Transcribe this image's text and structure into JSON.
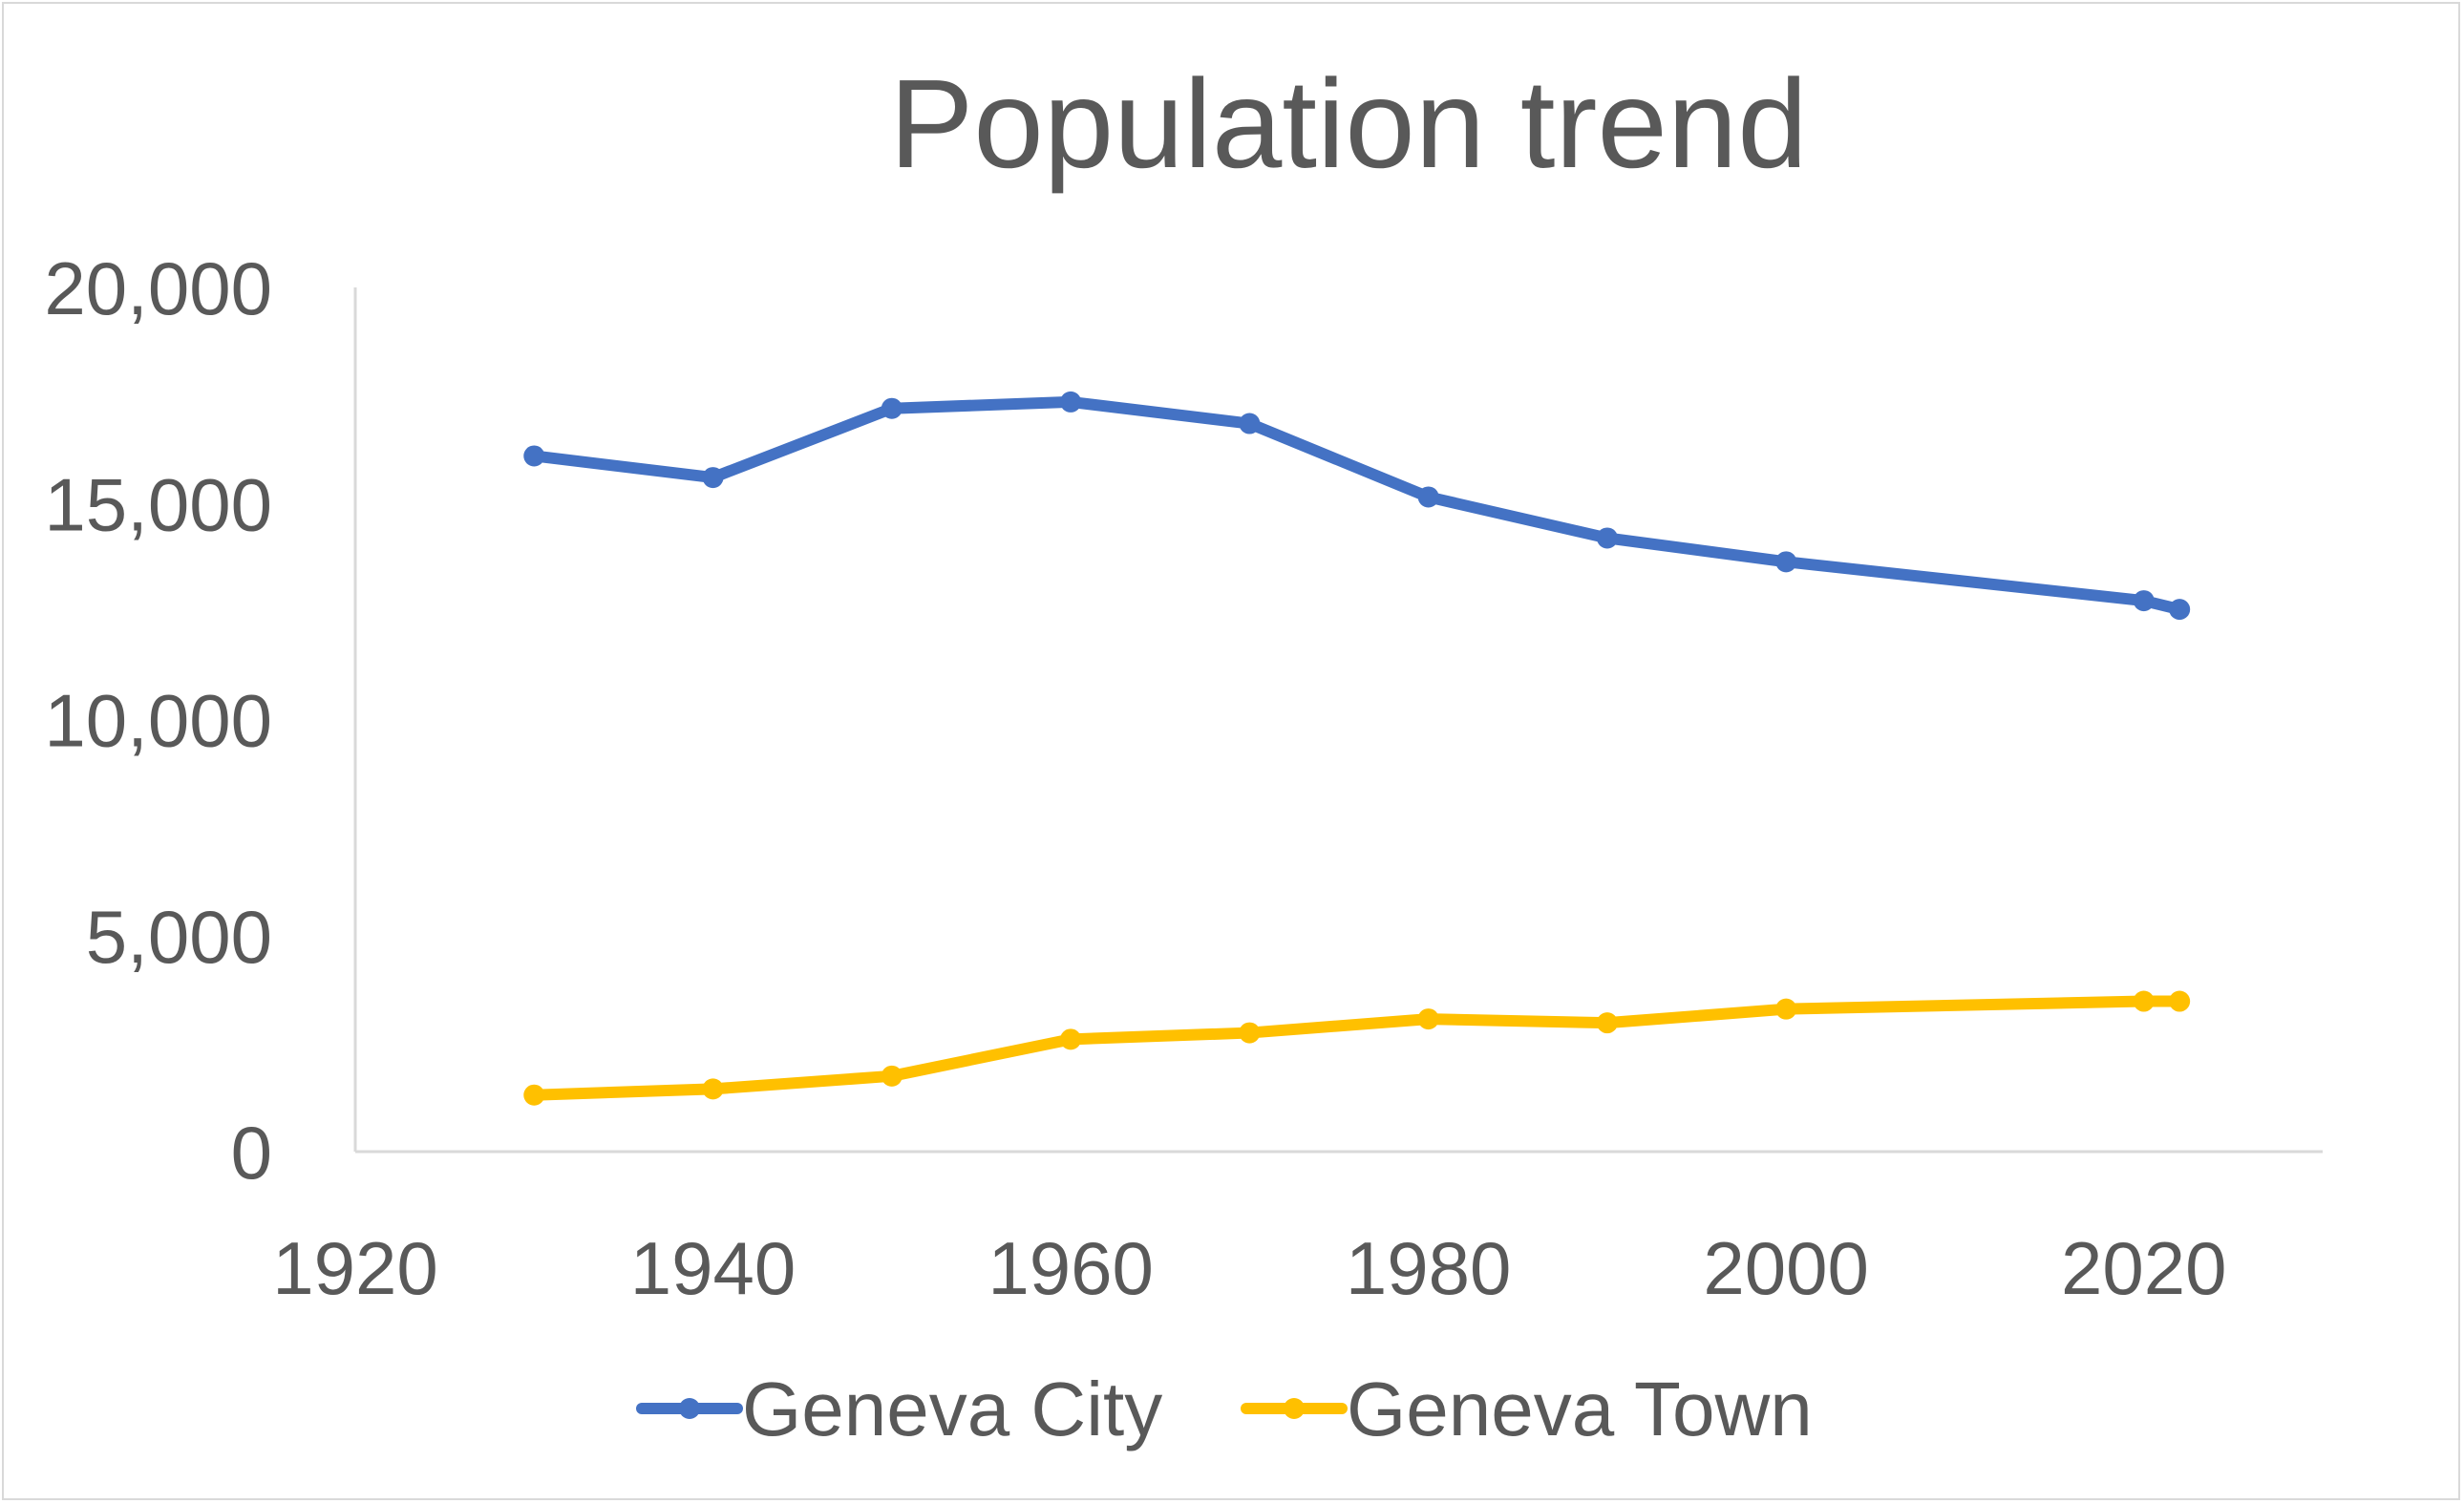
{
  "chart_data": {
    "type": "line",
    "title": "Population trend",
    "xlabel": "",
    "ylabel": "",
    "xlim": [
      1920,
      2030
    ],
    "ylim": [
      0,
      20000
    ],
    "x_ticks": [
      1920,
      1940,
      1960,
      1980,
      2000,
      2020
    ],
    "y_ticks": [
      0,
      5000,
      10000,
      15000,
      20000
    ],
    "y_tick_labels": [
      "0",
      "5,000",
      "10,000",
      "15,000",
      "20,000"
    ],
    "x_tick_labels": [
      "1920",
      "1940",
      "1960",
      "1980",
      "2000",
      "2020"
    ],
    "grid": false,
    "legend_position": "bottom",
    "x": [
      1930,
      1940,
      1950,
      1960,
      1970,
      1980,
      1990,
      2000,
      2020,
      2022
    ],
    "series": [
      {
        "name": "Geneva City",
        "color": "#4472C4",
        "values": [
          16100,
          15600,
          17200,
          17350,
          16850,
          15150,
          14200,
          13650,
          12750,
          12550
        ]
      },
      {
        "name": "Geneva Town",
        "color": "#FFC000",
        "values": [
          1310,
          1450,
          1750,
          2600,
          2750,
          3070,
          2980,
          3300,
          3480,
          3480
        ]
      }
    ]
  }
}
